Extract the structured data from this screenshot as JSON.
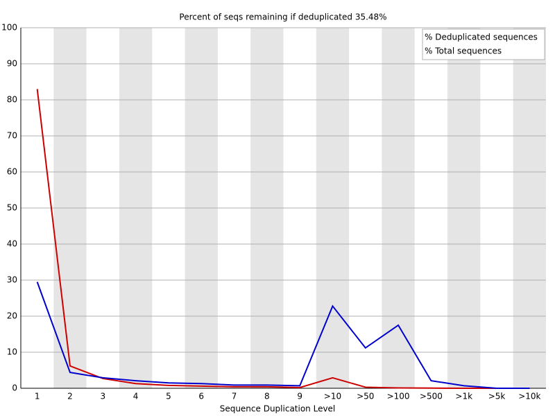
{
  "chart_data": {
    "type": "line",
    "title": "Percent of seqs remaining if deduplicated 35.48%",
    "x_label": "Sequence Duplication Level",
    "categories": [
      "1",
      "2",
      "3",
      "4",
      "5",
      "6",
      "7",
      "8",
      "9",
      ">10",
      ">50",
      ">100",
      ">500",
      ">1k",
      ">5k",
      ">10k"
    ],
    "series": [
      {
        "name": "% Deduplicated sequences",
        "color": "#cc0000",
        "values": [
          83,
          6.2,
          2.7,
          1.3,
          0.8,
          0.6,
          0.4,
          0.4,
          0.2,
          2.9,
          0.3,
          0.1,
          0.05,
          0,
          0,
          0
        ]
      },
      {
        "name": "% Total sequences",
        "color": "#0000cc",
        "values": [
          29.5,
          4.4,
          2.9,
          2.1,
          1.5,
          1.3,
          0.9,
          0.9,
          0.7,
          22.8,
          11.2,
          17.5,
          2.1,
          0.7,
          0,
          0
        ]
      }
    ],
    "ylim": [
      0,
      100
    ],
    "yticks": [
      0,
      10,
      20,
      30,
      40,
      50,
      60,
      70,
      80,
      90,
      100
    ],
    "grid": true,
    "legend": "top-right"
  }
}
